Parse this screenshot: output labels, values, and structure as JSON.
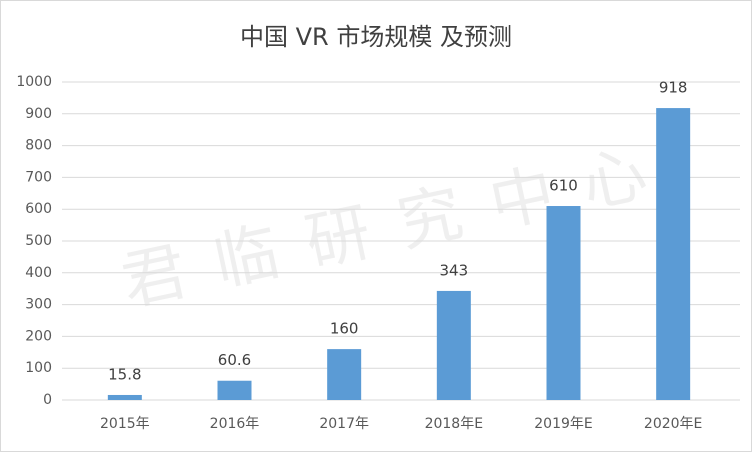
{
  "chart_data": {
    "type": "bar",
    "title": "中国 VR 市场规模 及预测",
    "watermark": "君临研究中心",
    "categories": [
      "2015年",
      "2016年",
      "2017年",
      "2018年E",
      "2019年E",
      "2020年E"
    ],
    "values": [
      15.8,
      60.6,
      160,
      343,
      610,
      918
    ],
    "color": "#5b9bd5",
    "ylim": [
      0,
      1000
    ],
    "yticks": [
      0,
      100,
      200,
      300,
      400,
      500,
      600,
      700,
      800,
      900,
      1000
    ],
    "grid": true
  }
}
